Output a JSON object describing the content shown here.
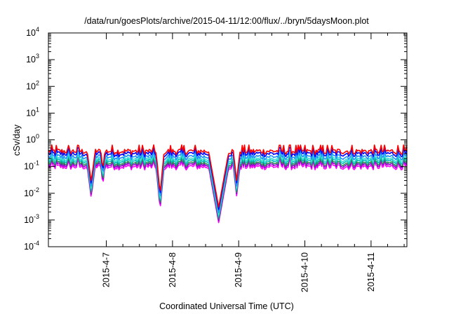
{
  "chart_data": {
    "type": "line",
    "title": "/data/run/goesPlots/archive/2015-04-11/12:00/flux/../bryn/5daysMoon.plot",
    "xlabel": "Coordinated Universal Time (UTC)",
    "ylabel": "cSv/day",
    "yscale": "log",
    "ylim": [
      0.0001,
      10000
    ],
    "xlim": [
      "2015-04-06 03:00",
      "2015-04-11 13:00"
    ],
    "grid": false,
    "legend": "none",
    "y_tick_labels": [
      {
        "base": "10",
        "exp": "-4"
      },
      {
        "base": "10",
        "exp": "-3"
      },
      {
        "base": "10",
        "exp": "-2"
      },
      {
        "base": "10",
        "exp": "-1"
      },
      {
        "base": "10",
        "exp": "0"
      },
      {
        "base": "10",
        "exp": "1"
      },
      {
        "base": "10",
        "exp": "2"
      },
      {
        "base": "10",
        "exp": "3"
      },
      {
        "base": "10",
        "exp": "4"
      }
    ],
    "x_tick_labels": [
      "2015-4-7",
      "2015-4-8",
      "2015-4-9",
      "2015-4-10",
      "2015-4-11"
    ],
    "x_ticks": [
      "2015-04-07",
      "2015-04-08",
      "2015-04-09",
      "2015-04-10",
      "2015-04-11"
    ],
    "dips": [
      {
        "start": "2015-04-06 17:00",
        "end": "2015-04-06 20:00",
        "min": 0.007
      },
      {
        "start": "2015-04-06 22:00",
        "end": "2015-04-06 23:30",
        "min": 0.02
      },
      {
        "start": "2015-04-07 18:00",
        "end": "2015-04-07 21:00",
        "min": 0.0025
      },
      {
        "start": "2015-04-08 13:00",
        "end": "2015-04-08 20:30",
        "min": 0.0008
      },
      {
        "start": "2015-04-08 22:00",
        "end": "2015-04-09 00:30",
        "min": 0.008
      }
    ],
    "series": [
      {
        "color": "#ff00ff",
        "level": 0.11
      },
      {
        "color": "#9400d3",
        "level": 0.13
      },
      {
        "color": "#2e8b57",
        "level": 0.15
      },
      {
        "color": "#00bfbf",
        "level": 0.18
      },
      {
        "color": "#40e0d0",
        "level": 0.21
      },
      {
        "color": "#1e90ff",
        "level": 0.26
      },
      {
        "color": "#0000ff",
        "level": 0.34
      },
      {
        "color": "#ff0000",
        "level": 0.42
      }
    ]
  }
}
